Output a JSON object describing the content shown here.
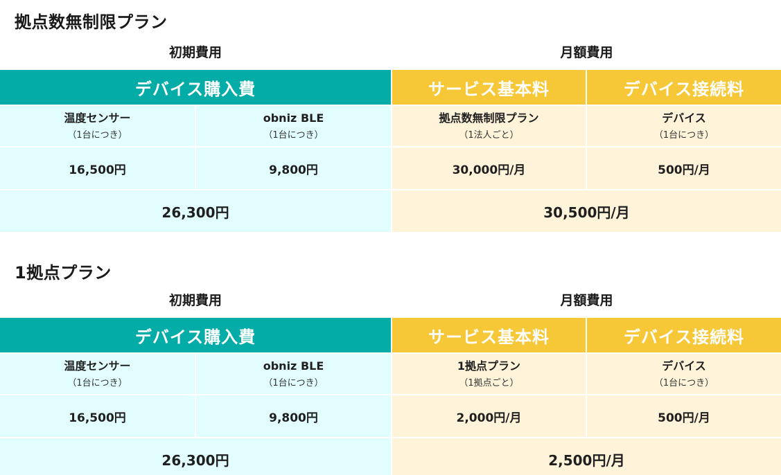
{
  "plans": [
    {
      "title": "拠点数無制限プラン",
      "initial_cost_caption": "初期費用",
      "monthly_cost_caption": "月額費用",
      "device_purchase_header": "デバイス購入費",
      "service_fee_header": "サービス基本料",
      "device_connection_header": "デバイス接続料",
      "items": [
        {
          "name": "温度センサー",
          "unit": "（1台につき）",
          "price": "16,500円"
        },
        {
          "name": "obniz BLE",
          "unit": "（1台につき）",
          "price": "9,800円"
        },
        {
          "name": "拠点数無制限プラン",
          "unit": "（1法人ごと）",
          "price": "30,000円/月"
        },
        {
          "name": "デバイス",
          "unit": "（1台につき）",
          "price": "500円/月"
        }
      ],
      "initial_total": "26,300円",
      "monthly_total": "30,500円/月"
    },
    {
      "title": "1拠点プラン",
      "initial_cost_caption": "初期費用",
      "monthly_cost_caption": "月額費用",
      "device_purchase_header": "デバイス購入費",
      "service_fee_header": "サービス基本料",
      "device_connection_header": "デバイス接続料",
      "items": [
        {
          "name": "温度センサー",
          "unit": "（1台につき）",
          "price": "16,500円"
        },
        {
          "name": "obniz BLE",
          "unit": "（1台につき）",
          "price": "9,800円"
        },
        {
          "name": "1拠点プラン",
          "unit": "（1拠点ごと）",
          "price": "2,000円/月"
        },
        {
          "name": "デバイス",
          "unit": "（1台につき）",
          "price": "500円/月"
        }
      ],
      "initial_total": "26,300円",
      "monthly_total": "2,500円/月"
    }
  ],
  "colors": {
    "teal_header": "#03aca7",
    "gold_header": "#f6c837",
    "cyan_cell": "#e1fdfd",
    "cream_cell": "#fff3d9"
  }
}
